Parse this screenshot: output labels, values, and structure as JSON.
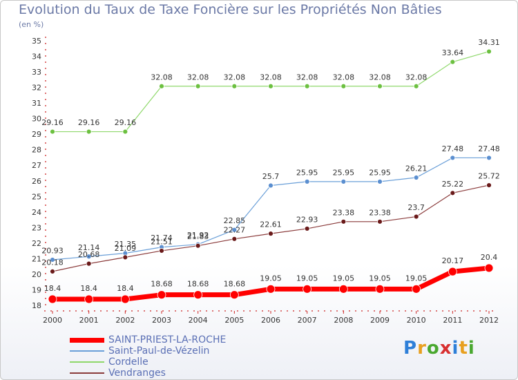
{
  "header": {
    "title": "Evolution du Taux de Taxe Foncière sur les Propriétés Non Bâties",
    "unit": "(en %)"
  },
  "logo": {
    "text": "Proxiti",
    "colors": [
      "#2e7fd8",
      "#e8a020",
      "#4aa830",
      "#d83030",
      "#2e7fd8",
      "#e8a020",
      "#4aa830"
    ]
  },
  "chart_data": {
    "type": "line",
    "x": [
      "2000",
      "2001",
      "2002",
      "2003",
      "2004",
      "2005",
      "2006",
      "2007",
      "2008",
      "2009",
      "2010",
      "2011",
      "2012"
    ],
    "ylim": [
      18,
      35
    ],
    "yticks": [
      18,
      19,
      20,
      21,
      22,
      23,
      24,
      25,
      26,
      27,
      28,
      29,
      30,
      31,
      32,
      33,
      34,
      35
    ],
    "grid": false,
    "legend": "bottom-left",
    "series": [
      {
        "name": "Saint-Paul-de-Vézelin",
        "color": "#6a9fd8",
        "pointColor": "#5b8fd0",
        "width": 1.2,
        "r": 3.5,
        "values": [
          20.93,
          21.14,
          21.35,
          21.74,
          21.92,
          22.85,
          25.7,
          25.95,
          25.95,
          25.95,
          26.21,
          27.48,
          27.48
        ],
        "labels": [
          "20.93",
          "21.14",
          "21.35",
          "21.74",
          "21.92",
          "22.85",
          "25.7",
          "25.95",
          "25.95",
          "25.95",
          "26.21",
          "27.48",
          "27.48"
        ]
      },
      {
        "name": "Cordelle",
        "color": "#8ed86a",
        "pointColor": "#6cc040",
        "width": 1.2,
        "r": 3.5,
        "values": [
          29.16,
          29.16,
          29.16,
          32.08,
          32.08,
          32.08,
          32.08,
          32.08,
          32.08,
          32.08,
          32.08,
          33.64,
          34.31
        ],
        "labels": [
          "29.16",
          "29.16",
          "29.16",
          "32.08",
          "32.08",
          "32.08",
          "32.08",
          "32.08",
          "32.08",
          "32.08",
          "32.08",
          "33.64",
          "34.31"
        ]
      },
      {
        "name": "Vendranges",
        "color": "#8a3a3a",
        "pointColor": "#6a1a1a",
        "width": 1.2,
        "r": 3.5,
        "values": [
          20.18,
          20.68,
          21.09,
          21.51,
          21.83,
          22.27,
          22.61,
          22.93,
          23.38,
          23.38,
          23.7,
          25.22,
          25.72
        ],
        "labels": [
          "20.18",
          "20.68",
          "21.09",
          "21.51",
          "21.83",
          "22.27",
          "22.61",
          "22.93",
          "23.38",
          "23.38",
          "23.7",
          "25.22",
          "25.72"
        ]
      },
      {
        "name": "SAINT-PRIEST-LA-ROCHE",
        "color": "#ff0000",
        "pointColor": "#ff0000",
        "width": 7,
        "r": 6,
        "values": [
          18.4,
          18.4,
          18.4,
          18.68,
          18.68,
          18.68,
          19.05,
          19.05,
          19.05,
          19.05,
          19.05,
          20.17,
          20.4
        ],
        "labels": [
          "18.4",
          "18.4",
          "18.4",
          "18.68",
          "18.68",
          "18.68",
          "19.05",
          "19.05",
          "19.05",
          "19.05",
          "19.05",
          "20.17",
          "20.4"
        ]
      }
    ],
    "legendOrder": [
      "SAINT-PRIEST-LA-ROCHE",
      "Saint-Paul-de-Vézelin",
      "Cordelle",
      "Vendranges"
    ]
  }
}
